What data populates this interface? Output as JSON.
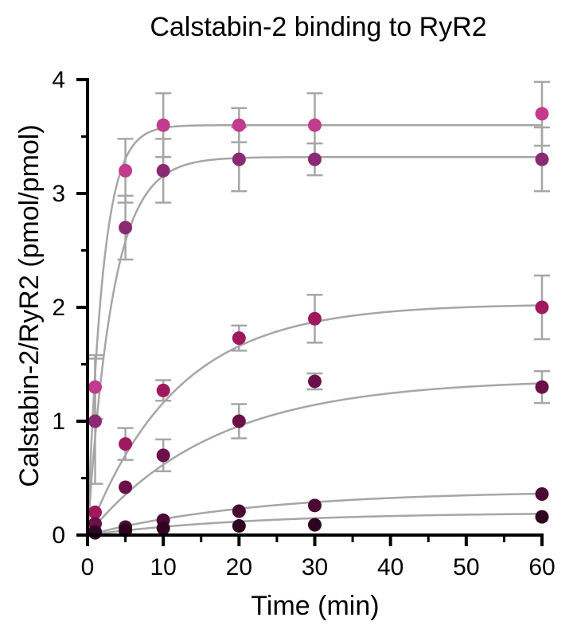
{
  "chart_data": {
    "type": "scatter",
    "title": "Calstabin-2 binding to RyR2",
    "xlabel": "Time (min)",
    "ylabel": "Calstabin-2/RyR2 (pmol/pmol)",
    "xlim": [
      0,
      60
    ],
    "ylim": [
      0,
      4
    ],
    "xticks": [
      0,
      10,
      20,
      30,
      40,
      50,
      60
    ],
    "xtick_labels": [
      "0",
      "10",
      "20",
      "30",
      "40",
      "50",
      "60"
    ],
    "yticks": [
      0,
      1,
      2,
      3,
      4
    ],
    "ytick_labels": [
      "0",
      "1",
      "2",
      "3",
      "4"
    ],
    "grid": false,
    "fit_color": "#a6a6a6",
    "series": [
      {
        "color": "#c23b8c",
        "x": [
          1,
          5,
          10,
          20,
          30,
          60
        ],
        "y": [
          1.3,
          3.2,
          3.6,
          3.6,
          3.6,
          3.7
        ],
        "error": [
          0.28,
          0.28,
          0.28,
          0.15,
          0.28,
          0.28
        ],
        "fit": {
          "ymax": 3.6,
          "k": 0.5
        }
      },
      {
        "color": "#8a2a73",
        "x": [
          1,
          5,
          10,
          20,
          30,
          60
        ],
        "y": [
          1.0,
          2.7,
          3.2,
          3.3,
          3.3,
          3.3
        ],
        "error": [
          0.55,
          0.28,
          0.28,
          0.28,
          0.14,
          0.28
        ],
        "fit": {
          "ymax": 3.32,
          "k": 0.3
        }
      },
      {
        "color": "#a0185e",
        "x": [
          1,
          5,
          10,
          20,
          30,
          60
        ],
        "y": [
          0.2,
          0.8,
          1.27,
          1.73,
          1.9,
          2.0
        ],
        "error": [
          0.0,
          0.14,
          0.09,
          0.11,
          0.21,
          0.28
        ],
        "fit": {
          "ymax": 2.03,
          "k": 0.085
        }
      },
      {
        "color": "#6b1049",
        "x": [
          1,
          5,
          10,
          20,
          30,
          60
        ],
        "y": [
          0.1,
          0.42,
          0.7,
          1.0,
          1.35,
          1.3
        ],
        "error": [
          0.0,
          0.0,
          0.14,
          0.15,
          0.07,
          0.14
        ],
        "fit": {
          "ymax": 1.37,
          "k": 0.06
        }
      },
      {
        "color": "#4a0a33",
        "x": [
          1,
          5,
          10,
          20,
          30,
          60
        ],
        "y": [
          0.03,
          0.07,
          0.13,
          0.21,
          0.26,
          0.36
        ],
        "error": [
          0,
          0,
          0,
          0,
          0,
          0
        ],
        "fit": {
          "ymax": 0.39,
          "k": 0.045
        }
      },
      {
        "color": "#2e0520",
        "x": [
          1,
          5,
          10,
          20,
          30,
          60
        ],
        "y": [
          0.02,
          0.04,
          0.06,
          0.08,
          0.09,
          0.16
        ],
        "error": [
          0,
          0,
          0,
          0,
          0,
          0
        ],
        "fit": {
          "ymax": 0.2,
          "k": 0.045
        }
      }
    ]
  }
}
